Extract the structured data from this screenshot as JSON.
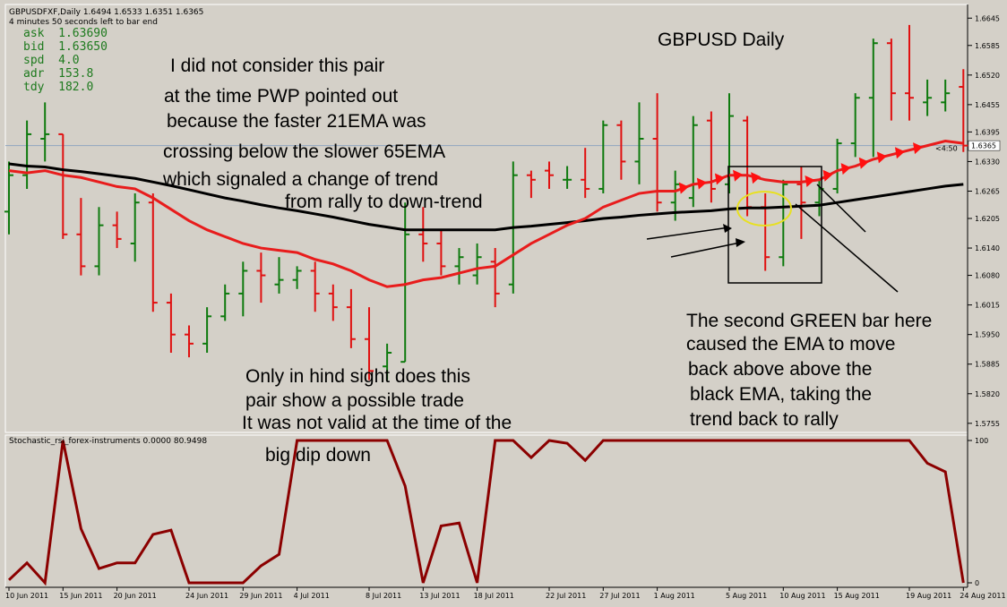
{
  "window": {
    "symbol_line": "GBPUSDFXF,Daily  1.6494 1.6533 1.6351 1.6365",
    "timer_line": "4 minutes 50 seconds left to bar end"
  },
  "quote_panel": [
    {
      "label": "ask",
      "value": "1.63690"
    },
    {
      "label": "bid",
      "value": "1.63650"
    },
    {
      "label": "spd",
      "value": "4.0"
    },
    {
      "label": "adr",
      "value": "153.8"
    },
    {
      "label": "tdy",
      "value": "182.0"
    }
  ],
  "annotations": {
    "title": "GBPUSD Daily",
    "left_note": [
      "I did not consider this pair",
      "at the time PWP pointed out",
      "because the faster 21EMA was",
      "crossing below the slower 65EMA",
      "which signaled a change of trend",
      "from rally to down-trend"
    ],
    "hindsight_note": [
      "Only in hind sight does this",
      "pair show a possible trade",
      "It was not valid at the time of the",
      "big dip down"
    ],
    "right_note": [
      "The second GREEN bar here",
      "caused the EMA to move",
      "back above above the",
      "black EMA, taking the",
      "trend back to rally"
    ]
  },
  "indicator": {
    "header": "Stochastic_rsi_forex-instruments 0.0000 80.9498"
  },
  "colors": {
    "background": "#d4d0c8",
    "bull_bar": "#0e7a0e",
    "bear_bar": "#e01010",
    "ema_fast": "#e81c1c",
    "ema_slow": "#000000",
    "stoch": "#8b0000",
    "price_line": "#8fa6c0"
  },
  "chart_data": [
    {
      "type": "line",
      "title": "GBPUSD Daily",
      "subtype": "ohlc",
      "x": [
        "10 Jun 2011",
        "13 Jun 2011",
        "14 Jun 2011",
        "15 Jun 2011",
        "16 Jun 2011",
        "17 Jun 2011",
        "20 Jun 2011",
        "21 Jun 2011",
        "22 Jun 2011",
        "23 Jun 2011",
        "24 Jun 2011",
        "27 Jun 2011",
        "28 Jun 2011",
        "29 Jun 2011",
        "30 Jun 2011",
        "1 Jul 2011",
        "4 Jul 2011",
        "5 Jul 2011",
        "6 Jul 2011",
        "7 Jul 2011",
        "8 Jul 2011",
        "11 Jul 2011",
        "12 Jul 2011",
        "13 Jul 2011",
        "14 Jul 2011",
        "15 Jul 2011",
        "18 Jul 2011",
        "19 Jul 2011",
        "20 Jul 2011",
        "21 Jul 2011",
        "22 Jul 2011",
        "25 Jul 2011",
        "26 Jul 2011",
        "27 Jul 2011",
        "28 Jul 2011",
        "29 Jul 2011",
        "1 Aug 2011",
        "2 Aug 2011",
        "3 Aug 2011",
        "4 Aug 2011",
        "5 Aug 2011",
        "8 Aug 2011",
        "9 Aug 2011",
        "10 Aug 2011",
        "11 Aug 2011",
        "12 Aug 2011",
        "15 Aug 2011",
        "16 Aug 2011",
        "17 Aug 2011",
        "18 Aug 2011",
        "19 Aug 2011",
        "22 Aug 2011",
        "23 Aug 2011",
        "24 Aug 2011"
      ],
      "ohlc": [
        [
          1.622,
          1.633,
          1.617,
          1.63
        ],
        [
          1.63,
          1.642,
          1.627,
          1.639
        ],
        [
          1.638,
          1.646,
          1.633,
          1.639
        ],
        [
          1.639,
          1.639,
          1.616,
          1.617
        ],
        [
          1.617,
          1.625,
          1.608,
          1.61
        ],
        [
          1.61,
          1.623,
          1.608,
          1.619
        ],
        [
          1.619,
          1.622,
          1.614,
          1.616
        ],
        [
          1.615,
          1.626,
          1.611,
          1.624
        ],
        [
          1.624,
          1.626,
          1.6,
          1.602
        ],
        [
          1.602,
          1.604,
          1.591,
          1.595
        ],
        [
          1.595,
          1.597,
          1.59,
          1.593
        ],
        [
          1.593,
          1.601,
          1.591,
          1.599
        ],
        [
          1.599,
          1.606,
          1.598,
          1.604
        ],
        [
          1.604,
          1.611,
          1.599,
          1.609
        ],
        [
          1.609,
          1.613,
          1.602,
          1.608
        ],
        [
          1.606,
          1.612,
          1.604,
          1.607
        ],
        [
          1.607,
          1.61,
          1.605,
          1.609
        ],
        [
          1.609,
          1.611,
          1.6,
          1.604
        ],
        [
          1.604,
          1.606,
          1.598,
          1.601
        ],
        [
          1.601,
          1.605,
          1.592,
          1.594
        ],
        [
          1.594,
          1.601,
          1.585,
          1.587
        ],
        [
          1.588,
          1.593,
          1.585,
          1.591
        ],
        [
          1.589,
          1.624,
          1.589,
          1.617
        ],
        [
          1.617,
          1.623,
          1.611,
          1.615
        ],
        [
          1.615,
          1.618,
          1.608,
          1.61
        ],
        [
          1.61,
          1.614,
          1.606,
          1.612
        ],
        [
          1.608,
          1.615,
          1.606,
          1.612
        ],
        [
          1.611,
          1.614,
          1.601,
          1.604
        ],
        [
          1.606,
          1.633,
          1.604,
          1.63
        ],
        [
          1.63,
          1.631,
          1.625,
          1.629
        ],
        [
          1.631,
          1.633,
          1.627,
          1.63
        ],
        [
          1.629,
          1.632,
          1.627,
          1.629
        ],
        [
          1.629,
          1.636,
          1.625,
          1.627
        ],
        [
          1.627,
          1.642,
          1.626,
          1.641
        ],
        [
          1.641,
          1.642,
          1.629,
          1.633
        ],
        [
          1.633,
          1.646,
          1.628,
          1.638
        ],
        [
          1.638,
          1.648,
          1.622,
          1.624
        ],
        [
          1.624,
          1.631,
          1.62,
          1.628
        ],
        [
          1.625,
          1.643,
          1.623,
          1.641
        ],
        [
          1.642,
          1.644,
          1.624,
          1.627
        ],
        [
          1.628,
          1.648,
          1.626,
          1.643
        ],
        [
          1.642,
          1.643,
          1.621,
          1.623
        ],
        [
          1.623,
          1.626,
          1.609,
          1.612
        ],
        [
          1.612,
          1.629,
          1.61,
          1.628
        ],
        [
          1.628,
          1.632,
          1.616,
          1.624
        ],
        [
          1.624,
          1.629,
          1.621,
          1.627
        ],
        [
          1.627,
          1.638,
          1.626,
          1.637
        ],
        [
          1.637,
          1.648,
          1.634,
          1.647
        ],
        [
          1.647,
          1.66,
          1.634,
          1.659
        ],
        [
          1.659,
          1.66,
          1.642,
          1.648
        ],
        [
          1.648,
          1.663,
          1.642,
          1.647
        ],
        [
          1.646,
          1.651,
          1.643,
          1.647
        ],
        [
          1.646,
          1.651,
          1.644,
          1.648
        ],
        [
          1.6494,
          1.6533,
          1.6351,
          1.6365
        ]
      ],
      "series": [
        {
          "values": [
            1.631,
            1.6305,
            1.631,
            1.63,
            1.6295,
            1.6285,
            1.6275,
            1.627,
            1.625,
            1.6225,
            1.62,
            1.618,
            1.6165,
            1.615,
            1.614,
            1.6135,
            1.613,
            1.6115,
            1.6105,
            1.609,
            1.607,
            1.6055,
            1.606,
            1.607,
            1.6075,
            1.6085,
            1.6095,
            1.61,
            1.6125,
            1.615,
            1.617,
            1.619,
            1.6205,
            1.623,
            1.6245,
            1.626,
            1.6265,
            1.6265,
            1.628,
            1.6285,
            1.63,
            1.63,
            1.629,
            1.6285,
            1.6285,
            1.629,
            1.631,
            1.632,
            1.6335,
            1.6345,
            1.6355,
            1.6365,
            1.6375,
            1.637
          ]
        },
        {
          "values": [
            1.6325,
            1.632,
            1.6318,
            1.6312,
            1.6308,
            1.6303,
            1.6298,
            1.6293,
            1.6285,
            1.6277,
            1.6268,
            1.6259,
            1.625,
            1.6243,
            1.6235,
            1.6228,
            1.6222,
            1.6215,
            1.6208,
            1.62,
            1.6192,
            1.6186,
            1.618,
            1.618,
            1.618,
            1.618,
            1.618,
            1.618,
            1.6185,
            1.6188,
            1.6192,
            1.6196,
            1.62,
            1.6205,
            1.6208,
            1.6212,
            1.6215,
            1.6218,
            1.622,
            1.6222,
            1.6226,
            1.6228,
            1.6228,
            1.623,
            1.6232,
            1.6234,
            1.624,
            1.6246,
            1.6252,
            1.6258,
            1.6264,
            1.627,
            1.6276,
            1.628
          ]
        }
      ],
      "current_price": 1.6365,
      "price_label": "1.6365",
      "timer_label": "<4:50",
      "ylim": [
        1.5735,
        1.6675
      ],
      "y_ticks": [
        "1.6645",
        "1.6585",
        "1.6520",
        "1.6455",
        "1.6395",
        "1.6330",
        "1.6265",
        "1.6205",
        "1.6140",
        "1.6080",
        "1.6015",
        "1.5950",
        "1.5885",
        "1.5820",
        "1.5755"
      ],
      "x_ticks": [
        "10 Jun 2011",
        "15 Jun 2011",
        "20 Jun 2011",
        "24 Jun 2011",
        "29 Jun 2011",
        "4 Jul 2011",
        "8 Jul 2011",
        "13 Jul 2011",
        "18 Jul 2011",
        "22 Jul 2011",
        "27 Jul 2011",
        "1 Aug 2011",
        "5 Aug 2011",
        "10 Aug 2011",
        "15 Aug 2011",
        "19 Aug 2011",
        "24 Aug 2011"
      ],
      "grid": false
    },
    {
      "type": "line",
      "values": [
        2,
        14,
        0,
        100,
        38,
        10,
        14,
        14,
        34,
        37,
        0,
        0,
        0,
        0,
        12,
        20,
        100,
        100,
        100,
        100,
        100,
        100,
        68,
        0,
        40,
        42,
        0,
        100,
        100,
        88,
        100,
        98,
        86,
        100,
        100,
        100,
        100,
        100,
        100,
        100,
        100,
        100,
        100,
        100,
        100,
        100,
        100,
        100,
        100,
        100,
        100,
        84,
        78,
        0
      ],
      "ylim": [
        0,
        100
      ],
      "y_ticks": [
        "100",
        "0"
      ]
    }
  ]
}
